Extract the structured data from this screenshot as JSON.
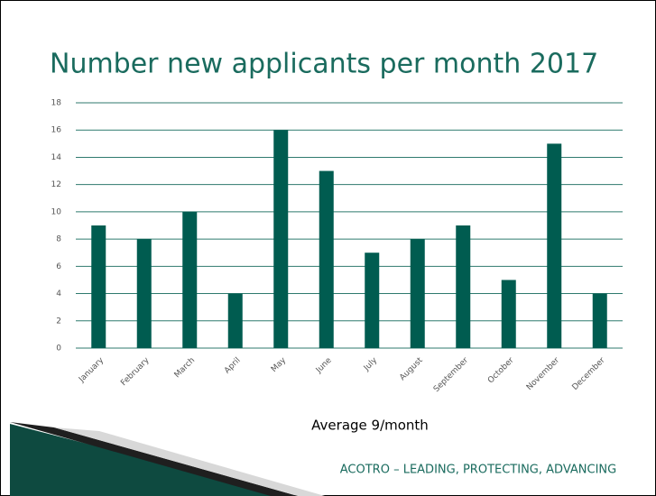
{
  "chart_data": {
    "type": "bar",
    "title": "Number new applicants per month 2017",
    "categories": [
      "January",
      "February",
      "March",
      "April",
      "May",
      "June",
      "July",
      "August",
      "September",
      "October",
      "November",
      "December"
    ],
    "values": [
      9,
      8,
      10,
      4,
      16,
      13,
      7,
      8,
      9,
      5,
      15,
      4
    ],
    "color": "#005c50",
    "ylim": [
      0,
      18
    ],
    "yticks": [
      0,
      2,
      4,
      6,
      8,
      10,
      12,
      14,
      16,
      18
    ],
    "grid": true,
    "annotation": "Average 9/month",
    "footer": "ACOTRO – LEADING, PROTECTING, ADVANCING"
  }
}
